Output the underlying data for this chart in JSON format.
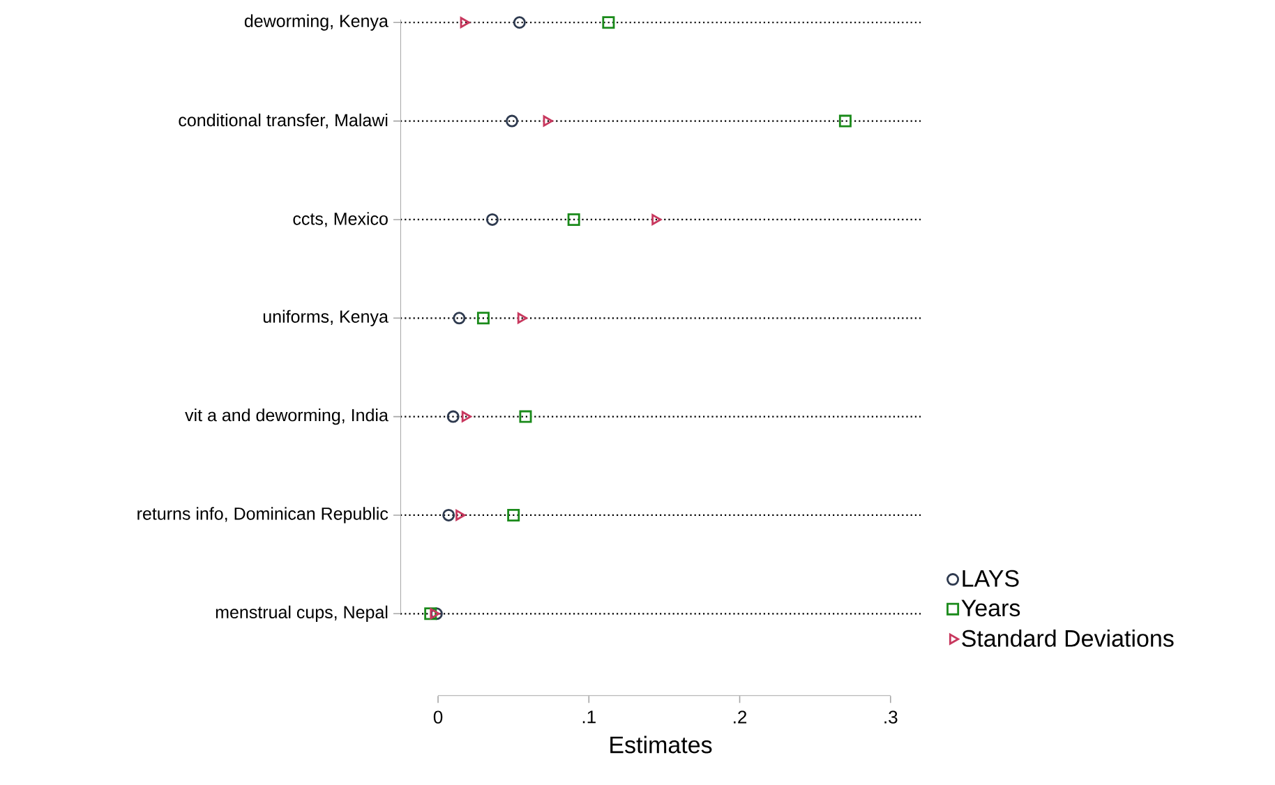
{
  "chart_data": {
    "type": "scatter",
    "orientation": "horizontal",
    "xlabel": "Estimates",
    "categories": [
      "deworming, Kenya",
      "conditional transfer, Malawi",
      "ccts, Mexico",
      "uniforms, Kenya",
      "vit a and deworming, India",
      "returns info, Dominican Republic",
      "menstrual cups, Nepal"
    ],
    "xlim": [
      -0.025,
      0.32
    ],
    "xticks": [
      0,
      {
        "value": 0.1,
        "label": ".1"
      },
      {
        "value": 0.2,
        "label": ".2"
      },
      {
        "value": 0.3,
        "label": ".3"
      }
    ],
    "grid": "y",
    "legend": "right",
    "series": [
      {
        "name": "LAYS",
        "color": "#2e3a4f",
        "marker": "circle",
        "values": [
          0.054,
          0.049,
          0.036,
          0.014,
          0.01,
          0.007,
          -0.001
        ]
      },
      {
        "name": "Years",
        "color": "#1a8a1a",
        "marker": "square",
        "values": [
          0.113,
          0.27,
          0.09,
          0.03,
          0.058,
          0.05,
          -0.005
        ]
      },
      {
        "name": "Standard Deviations",
        "color": "#c8385e",
        "marker": "triangle",
        "values": [
          0.017,
          0.072,
          0.144,
          0.055,
          0.018,
          0.014,
          -0.003
        ]
      }
    ]
  }
}
